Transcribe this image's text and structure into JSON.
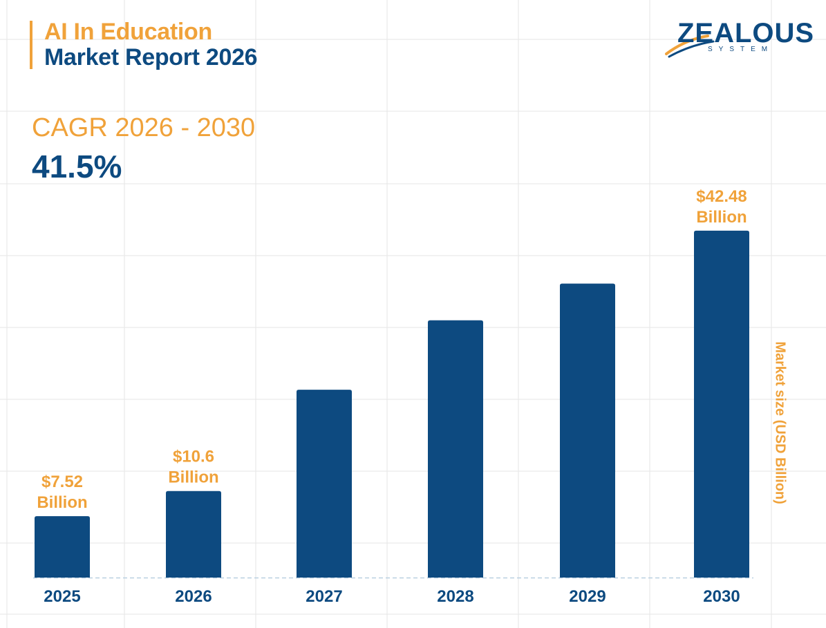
{
  "header": {
    "title_line1": "AI In Education",
    "title_line2": "Market Report 2026"
  },
  "cagr": {
    "label": "CAGR 2026 - 2030",
    "value": "41.5%"
  },
  "logo": {
    "wordmark": "ZEALOUS",
    "subtitle": "SYSTEM"
  },
  "colors": {
    "bar": "#0d4a80",
    "accent": "#f0a23a",
    "grid": "#e6e6e6",
    "baseline": "#b9cfe0"
  },
  "chart_data": {
    "type": "bar",
    "categories": [
      "2025",
      "2026",
      "2027",
      "2028",
      "2029",
      "2030"
    ],
    "values": [
      7.52,
      10.6,
      23.0,
      31.5,
      36.0,
      42.48
    ],
    "data_labels": [
      "$7.52 Billion",
      "$10.6 Billion",
      "",
      "",
      "",
      "$42.48 Billion"
    ],
    "ylabel": "Market size (USD Billion)",
    "xlabel": "",
    "ylim": [
      0,
      52.5
    ],
    "grid": true,
    "legend": "none"
  }
}
